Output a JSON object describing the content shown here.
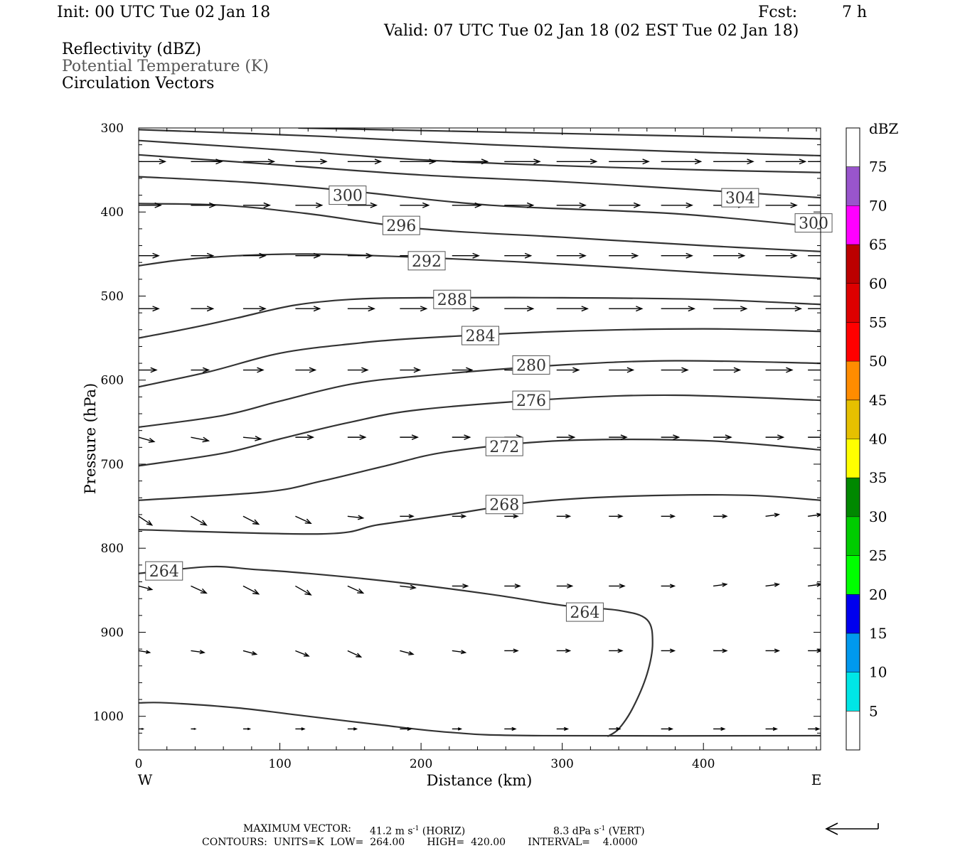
{
  "header": {
    "init": "Init: 00 UTC Tue 02 Jan 18",
    "fcst_label": "Fcst:",
    "fcst_value": "7 h",
    "valid": "Valid: 07 UTC Tue 02 Jan 18 (02 EST Tue 02 Jan 18)",
    "fields": [
      "Reflectivity (dBZ)",
      "Potential Temperature (K)",
      "Circulation Vectors"
    ]
  },
  "footer": {
    "max_vector_label": "MAXIMUM VECTOR:",
    "horiz_value": "41.2 m s",
    "horiz_suffix": " (HORIZ)",
    "vert_value": "8.3 dPa s",
    "vert_suffix": " (VERT)",
    "exponent": "-1",
    "contours": "CONTOURS:  UNITS=K  LOW=  264.00       HIGH=  420.00       INTERVAL=    4.0000"
  },
  "chart_data": {
    "type": "contour",
    "xlabel": "Distance (km)",
    "ylabel": "Pressure (hPa)",
    "xlim": [
      0,
      483
    ],
    "ylim": [
      300,
      1040
    ],
    "y_scale": "linear-inverted",
    "x_ticks": [
      0,
      100,
      200,
      300,
      400
    ],
    "y_ticks": [
      300,
      400,
      500,
      600,
      700,
      800,
      900,
      1000
    ],
    "x_end_labels": {
      "left": "W",
      "right": "E"
    },
    "contours": [
      {
        "label": "",
        "points": [
          [
            113,
            300
          ],
          [
            483,
            313
          ]
        ]
      },
      {
        "label": "",
        "points": [
          [
            0,
            302
          ],
          [
            130,
            310
          ],
          [
            250,
            320
          ],
          [
            380,
            328
          ],
          [
            483,
            333
          ]
        ]
      },
      {
        "label": "",
        "points": [
          [
            0,
            315
          ],
          [
            100,
            326
          ],
          [
            200,
            338
          ],
          [
            300,
            345
          ],
          [
            400,
            350
          ],
          [
            483,
            353
          ]
        ]
      },
      {
        "label": "",
        "points": [
          [
            0,
            332
          ],
          [
            100,
            344
          ],
          [
            200,
            356
          ],
          [
            300,
            364
          ],
          [
            400,
            374
          ],
          [
            483,
            383
          ]
        ]
      },
      {
        "label": "",
        "points": [
          [
            0,
            358
          ],
          [
            80,
            365
          ],
          [
            150,
            375
          ],
          [
            250,
            392
          ],
          [
            380,
            402
          ],
          [
            483,
            418
          ]
        ]
      },
      {
        "label": "",
        "points": [
          [
            0,
            390
          ],
          [
            60,
            392
          ],
          [
            120,
            402
          ],
          [
            200,
            420
          ],
          [
            300,
            430
          ],
          [
            400,
            440
          ],
          [
            483,
            447
          ]
        ]
      },
      {
        "label": "",
        "points": [
          [
            0,
            464
          ],
          [
            30,
            457
          ],
          [
            70,
            452
          ],
          [
            120,
            450
          ],
          [
            200,
            454
          ],
          [
            300,
            462
          ],
          [
            400,
            472
          ],
          [
            483,
            479
          ]
        ]
      },
      {
        "label": "",
        "points": [
          [
            0,
            550
          ],
          [
            40,
            537
          ],
          [
            70,
            526
          ],
          [
            110,
            511
          ],
          [
            150,
            504
          ],
          [
            200,
            502
          ],
          [
            300,
            502
          ],
          [
            400,
            504
          ],
          [
            483,
            510
          ]
        ]
      },
      {
        "label": "",
        "points": [
          [
            0,
            608
          ],
          [
            50,
            590
          ],
          [
            100,
            568
          ],
          [
            150,
            557
          ],
          [
            200,
            550
          ],
          [
            300,
            542
          ],
          [
            400,
            539
          ],
          [
            483,
            542
          ]
        ]
      },
      {
        "label": "",
        "points": [
          [
            0,
            656
          ],
          [
            60,
            642
          ],
          [
            100,
            625
          ],
          [
            150,
            605
          ],
          [
            200,
            595
          ],
          [
            300,
            582
          ],
          [
            380,
            577
          ],
          [
            483,
            580
          ]
        ]
      },
      {
        "label": "",
        "points": [
          [
            0,
            702
          ],
          [
            60,
            687
          ],
          [
            100,
            670
          ],
          [
            150,
            650
          ],
          [
            200,
            635
          ],
          [
            300,
            622
          ],
          [
            380,
            618
          ],
          [
            483,
            624
          ]
        ]
      },
      {
        "label": "",
        "points": [
          [
            0,
            743
          ],
          [
            90,
            733
          ],
          [
            130,
            720
          ],
          [
            175,
            702
          ],
          [
            220,
            685
          ],
          [
            300,
            672
          ],
          [
            400,
            672
          ],
          [
            483,
            683
          ]
        ]
      },
      {
        "label": "",
        "points": [
          [
            0,
            778
          ],
          [
            130,
            783
          ],
          [
            170,
            772
          ],
          [
            220,
            760
          ],
          [
            280,
            745
          ],
          [
            350,
            738
          ],
          [
            430,
            737
          ],
          [
            483,
            743
          ]
        ]
      },
      {
        "label": "",
        "points": [
          [
            0,
            830
          ],
          [
            50,
            822
          ],
          [
            80,
            825
          ],
          [
            120,
            830
          ],
          [
            180,
            840
          ],
          [
            250,
            855
          ],
          [
            300,
            868
          ],
          [
            340,
            874
          ],
          [
            360,
            885
          ],
          [
            364,
            913
          ],
          [
            360,
            950
          ],
          [
            350,
            990
          ],
          [
            340,
            1015
          ],
          [
            332,
            1024
          ]
        ]
      },
      {
        "label": "",
        "points": [
          [
            0,
            984
          ],
          [
            20,
            984
          ],
          [
            70,
            990
          ],
          [
            120,
            1000
          ],
          [
            170,
            1010
          ],
          [
            220,
            1019
          ],
          [
            280,
            1023
          ],
          [
            483,
            1023
          ]
        ]
      }
    ],
    "contour_labels": [
      {
        "text": "300",
        "x": 148,
        "y": 380
      },
      {
        "text": "304",
        "x": 426,
        "y": 383
      },
      {
        "text": "296",
        "x": 186,
        "y": 416
      },
      {
        "text": "300",
        "x": 478,
        "y": 413
      },
      {
        "text": "292",
        "x": 204,
        "y": 458
      },
      {
        "text": "288",
        "x": 222,
        "y": 504
      },
      {
        "text": "284",
        "x": 242,
        "y": 547
      },
      {
        "text": "280",
        "x": 278,
        "y": 582
      },
      {
        "text": "276",
        "x": 278,
        "y": 624
      },
      {
        "text": "272",
        "x": 259,
        "y": 679
      },
      {
        "text": "268",
        "x": 259,
        "y": 748
      },
      {
        "text": "264",
        "x": 18,
        "y": 827
      },
      {
        "text": "264",
        "x": 316,
        "y": 876
      }
    ],
    "vectors": {
      "x_positions": [
        0,
        37,
        74,
        111,
        148,
        185,
        222,
        259,
        296,
        333,
        370,
        407,
        444,
        474
      ],
      "levels": [
        {
          "p": 340,
          "u": [
            24,
            28,
            28,
            28,
            30,
            32,
            32,
            32,
            36,
            36,
            36,
            36,
            36,
            36
          ],
          "w": [
            0,
            0,
            0,
            0,
            0,
            0,
            0,
            0,
            0,
            0,
            0,
            0,
            0,
            0
          ]
        },
        {
          "p": 392,
          "u": [
            20,
            22,
            24,
            24,
            26,
            26,
            26,
            26,
            26,
            28,
            28,
            28,
            28,
            28
          ],
          "w": [
            0,
            0,
            0,
            0,
            0,
            0,
            0,
            0,
            0,
            0,
            0,
            0,
            0,
            0
          ]
        },
        {
          "p": 452,
          "u": [
            18,
            20,
            20,
            22,
            22,
            22,
            24,
            24,
            26,
            26,
            28,
            28,
            28,
            30
          ],
          "w": [
            0,
            0,
            0,
            0,
            0,
            0,
            0,
            0,
            0,
            0,
            0,
            0,
            0,
            0
          ]
        },
        {
          "p": 515,
          "u": [
            18,
            20,
            20,
            22,
            24,
            24,
            24,
            26,
            28,
            30,
            30,
            30,
            32,
            32
          ],
          "w": [
            0,
            0,
            0,
            0,
            0,
            0,
            0,
            0,
            0,
            0,
            0,
            0,
            0,
            0
          ]
        },
        {
          "p": 588,
          "u": [
            16,
            16,
            18,
            18,
            18,
            18,
            18,
            18,
            20,
            22,
            24,
            24,
            24,
            24
          ],
          "w": [
            0,
            0,
            0,
            0,
            0,
            0,
            0,
            0,
            0,
            0,
            0,
            0,
            0,
            0
          ]
        },
        {
          "p": 668,
          "u": [
            14,
            16,
            16,
            16,
            16,
            16,
            16,
            16,
            16,
            16,
            16,
            16,
            16,
            16
          ],
          "w": [
            -1.0,
            -0.8,
            -0.4,
            0,
            0,
            0,
            0,
            0,
            0,
            0,
            0,
            0,
            0,
            0
          ]
        },
        {
          "p": 762,
          "u": [
            12,
            14,
            14,
            14,
            14,
            12,
            12,
            12,
            12,
            12,
            12,
            12,
            12,
            12
          ],
          "w": [
            -2.0,
            -2.0,
            -1.8,
            -1.6,
            -0.4,
            0,
            0,
            0,
            0,
            0,
            0,
            0,
            0.4,
            0.4
          ]
        },
        {
          "p": 845,
          "u": [
            12,
            14,
            14,
            14,
            14,
            14,
            14,
            14,
            14,
            14,
            12,
            12,
            12,
            12
          ],
          "w": [
            -0.8,
            -1.6,
            -1.8,
            -2.0,
            -1.6,
            -0.4,
            0,
            0,
            0,
            0,
            0,
            0.4,
            0.4,
            0.4
          ]
        },
        {
          "p": 922,
          "u": [
            10,
            12,
            12,
            12,
            12,
            12,
            12,
            12,
            12,
            12,
            12,
            12,
            12,
            12
          ],
          "w": [
            -0.4,
            -0.4,
            -0.8,
            -1.2,
            -1.4,
            -0.8,
            -0.4,
            0,
            0,
            0,
            0,
            0,
            0,
            0
          ]
        },
        {
          "p": 1015,
          "u": [
            4,
            4,
            6,
            8,
            8,
            10,
            8,
            10,
            10,
            10,
            10,
            10,
            10,
            10
          ],
          "w": [
            0,
            0,
            0,
            0,
            0,
            0,
            0,
            0,
            0,
            0,
            0,
            0,
            0,
            0
          ]
        }
      ]
    },
    "colorbar": {
      "title": "dBZ",
      "levels": [
        5,
        10,
        15,
        20,
        25,
        30,
        35,
        40,
        45,
        50,
        55,
        60,
        65,
        70,
        75
      ],
      "colors": [
        "#ffffff",
        "#00e6e6",
        "#0099ee",
        "#0000ee",
        "#00ff00",
        "#00cc00",
        "#008800",
        "#ffff00",
        "#e6c000",
        "#ff8c00",
        "#ff0000",
        "#dd0000",
        "#bb0000",
        "#ff00ff",
        "#9955cc",
        "#ffffff"
      ]
    },
    "legend_vector_direction": "west"
  },
  "colors": {
    "contour": "#333333",
    "frame": "#000000",
    "subtitle_grey": "#555555"
  }
}
